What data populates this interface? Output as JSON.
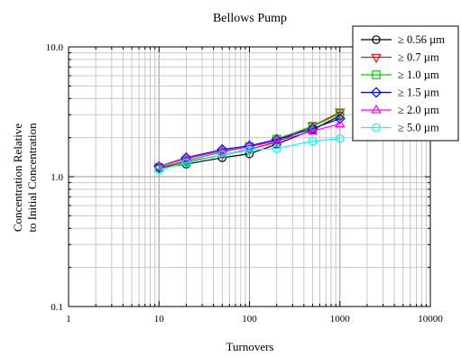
{
  "chart_data": {
    "type": "line",
    "title": "Bellows Pump",
    "xlabel": "Turnovers",
    "ylabel": [
      "Concentration Relative",
      "to Initial Concentration"
    ],
    "xscale": "log",
    "yscale": "log",
    "xlim": [
      1,
      10000
    ],
    "ylim": [
      0.1,
      10
    ],
    "x_tick_labels": [
      {
        "value": 1,
        "label": "1"
      },
      {
        "value": 10,
        "label": "10"
      },
      {
        "value": 100,
        "label": "100"
      },
      {
        "value": 1000,
        "label": "1000"
      },
      {
        "value": 10000,
        "label": "10000"
      }
    ],
    "y_tick_labels": [
      {
        "value": 0.1,
        "label": "0.1"
      },
      {
        "value": 1,
        "label": "1.0"
      },
      {
        "value": 10,
        "label": "10.0"
      }
    ],
    "grid": true,
    "legend_position": "top-right",
    "x": [
      10,
      20,
      50,
      100,
      200,
      500,
      1000
    ],
    "series": [
      {
        "name": "≥ 0.56 µm",
        "color": "#000000",
        "marker": "circle",
        "values": [
          1.17,
          1.25,
          1.4,
          1.5,
          1.78,
          2.3,
          2.95
        ]
      },
      {
        "name": "≥ 0.7 µm",
        "color": "#ff0000",
        "marker": "triangle-down",
        "values": [
          1.16,
          1.3,
          1.47,
          1.62,
          1.85,
          2.45,
          3.15
        ]
      },
      {
        "name": "≥ 1.0 µm",
        "color": "#00cc00",
        "marker": "square",
        "values": [
          1.18,
          1.33,
          1.55,
          1.7,
          1.95,
          2.45,
          3.05
        ]
      },
      {
        "name": "≥ 1.5 µm",
        "color": "#0000ff",
        "marker": "diamond",
        "values": [
          1.2,
          1.4,
          1.62,
          1.73,
          1.93,
          2.35,
          2.8
        ]
      },
      {
        "name": "≥ 2.0 µm",
        "color": "#ff00ff",
        "marker": "triangle-up",
        "values": [
          1.2,
          1.38,
          1.58,
          1.7,
          1.88,
          2.25,
          2.55
        ]
      },
      {
        "name": "≥ 5.0 µm",
        "color": "#00ffff",
        "marker": "circle",
        "values": [
          1.13,
          1.28,
          1.47,
          1.6,
          1.65,
          1.88,
          1.97
        ]
      }
    ]
  }
}
